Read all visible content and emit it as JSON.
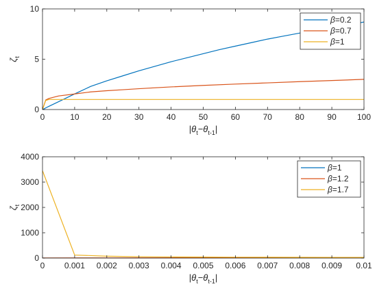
{
  "chart_data": [
    {
      "type": "line",
      "xlabel_parts": {
        "bar": "|",
        "theta": "θ",
        "t": "t",
        "minus": "−",
        "t1": "t-1"
      },
      "ylabel_parts": {
        "zeta": "ζ",
        "sub": "t"
      },
      "xlim": [
        0,
        100
      ],
      "ylim": [
        0,
        10
      ],
      "xticks": [
        0,
        10,
        20,
        30,
        40,
        50,
        60,
        70,
        80,
        90,
        100
      ],
      "xtick_labels": [
        "0",
        "10",
        "20",
        "30",
        "40",
        "50",
        "60",
        "70",
        "80",
        "90",
        "100"
      ],
      "yticks": [
        0,
        5,
        10
      ],
      "ytick_labels": [
        "0",
        "5",
        "10"
      ],
      "grid": false,
      "legend_position": "top-right",
      "series": [
        {
          "name": "β=0.2",
          "beta_symbol": "β",
          "beta_value": "=0.2",
          "color": "#0072BD",
          "x": [
            0,
            1,
            2,
            5,
            10,
            15,
            20,
            25,
            30,
            35,
            40,
            45,
            50,
            55,
            60,
            65,
            70,
            75,
            80,
            85,
            90,
            95,
            100
          ],
          "y": [
            0,
            0.16,
            0.32,
            0.78,
            1.55,
            2.3,
            2.85,
            3.35,
            3.85,
            4.3,
            4.75,
            5.15,
            5.55,
            5.95,
            6.3,
            6.65,
            7.0,
            7.3,
            7.6,
            7.9,
            8.15,
            8.4,
            8.7
          ]
        },
        {
          "name": "β=0.7",
          "beta_symbol": "β",
          "beta_value": "=0.7",
          "color": "#D95319",
          "x": [
            0,
            1,
            2,
            5,
            10,
            15,
            20,
            25,
            30,
            40,
            50,
            60,
            70,
            80,
            90,
            100
          ],
          "y": [
            0,
            0.95,
            1.1,
            1.35,
            1.55,
            1.75,
            1.87,
            1.97,
            2.07,
            2.25,
            2.4,
            2.53,
            2.65,
            2.77,
            2.88,
            3.0
          ]
        },
        {
          "name": "β=1",
          "beta_symbol": "β",
          "beta_value": "=1",
          "color": "#EDB120",
          "x": [
            0,
            1,
            2,
            100
          ],
          "y": [
            0,
            0.9,
            1.0,
            1.0
          ]
        }
      ]
    },
    {
      "type": "line",
      "xlabel_parts": {
        "bar": "|",
        "theta": "θ",
        "t": "t",
        "minus": "−",
        "t1": "t-1"
      },
      "ylabel_parts": {
        "zeta": "ζ",
        "sub": "t"
      },
      "xlim": [
        0,
        0.01
      ],
      "ylim": [
        0,
        4000
      ],
      "xticks": [
        0,
        0.001,
        0.002,
        0.003,
        0.004,
        0.005,
        0.006,
        0.007,
        0.008,
        0.009,
        0.01
      ],
      "xtick_labels": [
        "0",
        "0.001",
        "0.002",
        "0.003",
        "0.004",
        "0.005",
        "0.006",
        "0.007",
        "0.008",
        "0.009",
        "0.01"
      ],
      "yticks": [
        0,
        1000,
        2000,
        3000,
        4000
      ],
      "ytick_labels": [
        "0",
        "1000",
        "2000",
        "3000",
        "4000"
      ],
      "grid": false,
      "legend_position": "top-right",
      "series": [
        {
          "name": "β=1",
          "beta_symbol": "β",
          "beta_value": "=1",
          "color": "#0072BD",
          "x": [
            0,
            0.001,
            0.002,
            0.003,
            0.004,
            0.005,
            0.006,
            0.007,
            0.008,
            0.009,
            0.01
          ],
          "y": [
            1,
            1,
            1,
            1,
            1,
            1,
            1,
            1,
            1,
            1,
            1
          ]
        },
        {
          "name": "β=1.2",
          "beta_symbol": "β",
          "beta_value": "=1.2",
          "color": "#D95319",
          "x": [
            0,
            0.001,
            0.002,
            0.003,
            0.004,
            0.005,
            0.006,
            0.007,
            0.008,
            0.009,
            0.01
          ],
          "y": [
            5,
            8,
            9,
            10,
            11,
            12,
            13,
            13,
            14,
            14,
            15
          ]
        },
        {
          "name": "β=1.7",
          "beta_symbol": "β",
          "beta_value": "=1.7",
          "color": "#EDB120",
          "x": [
            0,
            0.001,
            0.002,
            0.003,
            0.004,
            0.005,
            0.006,
            0.007,
            0.008,
            0.009,
            0.01
          ],
          "y": [
            3450,
            120,
            75,
            55,
            45,
            40,
            36,
            33,
            31,
            29,
            28
          ]
        }
      ]
    }
  ]
}
